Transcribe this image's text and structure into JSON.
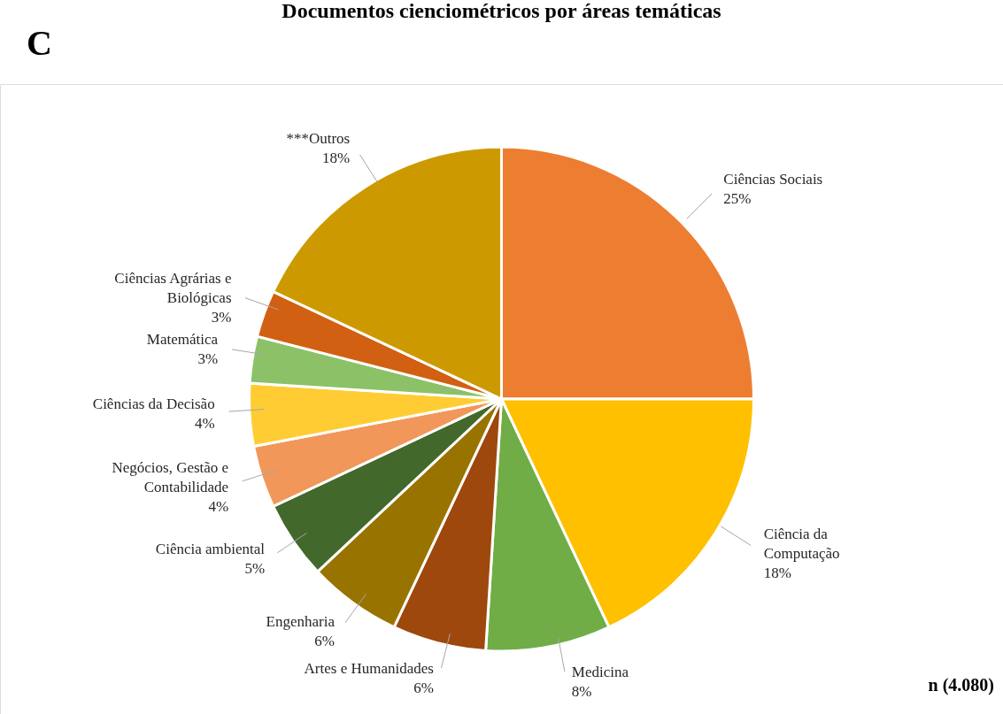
{
  "chart_data": {
    "type": "pie",
    "title": "Documentos cienciométricos por áreas temáticas",
    "categories": [
      "Ciências Sociais",
      "Ciência da Computação",
      "Medicina",
      "Artes e Humanidades",
      "Engenharia",
      "Ciência ambiental",
      "Negócios, Gestão e Contabilidade",
      "Ciências da Decisão",
      "Matemática",
      "Ciências Agrárias e Biológicas",
      "***Outros"
    ],
    "values": [
      25,
      18,
      8,
      6,
      6,
      5,
      4,
      4,
      3,
      3,
      18
    ],
    "value_labels": [
      "25%",
      "18%",
      "8%",
      "6%",
      "6%",
      "5%",
      "4%",
      "4%",
      "3%",
      "3%",
      "18%"
    ],
    "colors": [
      "#ed7d31",
      "#ffc000",
      "#70ad47",
      "#9e480e",
      "#997300",
      "#43682b",
      "#f1975a",
      "#ffcd33",
      "#8cc168",
      "#d26012",
      "#cc9a00"
    ],
    "annotations": [
      "C",
      "n (4.080)"
    ],
    "legend": false
  }
}
